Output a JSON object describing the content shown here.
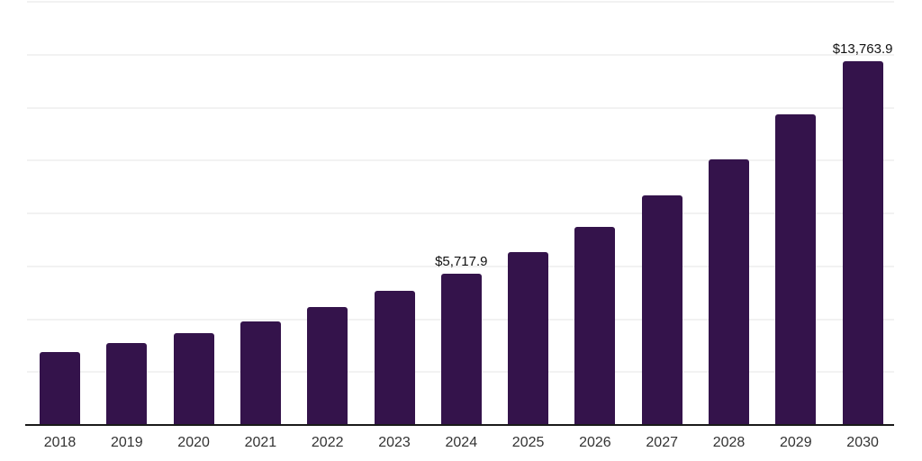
{
  "chart": {
    "background_color": "#ffffff",
    "bar_color": "#34134b",
    "gridline_color": "#f2f2f2",
    "axis_line_color": "#1a1a1a",
    "x_label_color": "#333333",
    "data_label_color": "#111111"
  },
  "chart_data": {
    "type": "bar",
    "title": "",
    "xlabel": "",
    "ylabel": "",
    "categories": [
      "2018",
      "2019",
      "2020",
      "2021",
      "2022",
      "2023",
      "2024",
      "2025",
      "2026",
      "2027",
      "2028",
      "2029",
      "2030"
    ],
    "values": [
      2750,
      3110,
      3470,
      3930,
      4460,
      5075,
      5717.9,
      6540,
      7500,
      8680,
      10050,
      11760,
      13763.9
    ],
    "data_labels": [
      null,
      null,
      null,
      null,
      null,
      null,
      "$5,717.9",
      null,
      null,
      null,
      null,
      null,
      "$13,763.9"
    ],
    "ylim": [
      0,
      16000
    ],
    "gridline_interval": 2000,
    "grid": true,
    "legend": false,
    "y_axis_labels_visible": false
  }
}
